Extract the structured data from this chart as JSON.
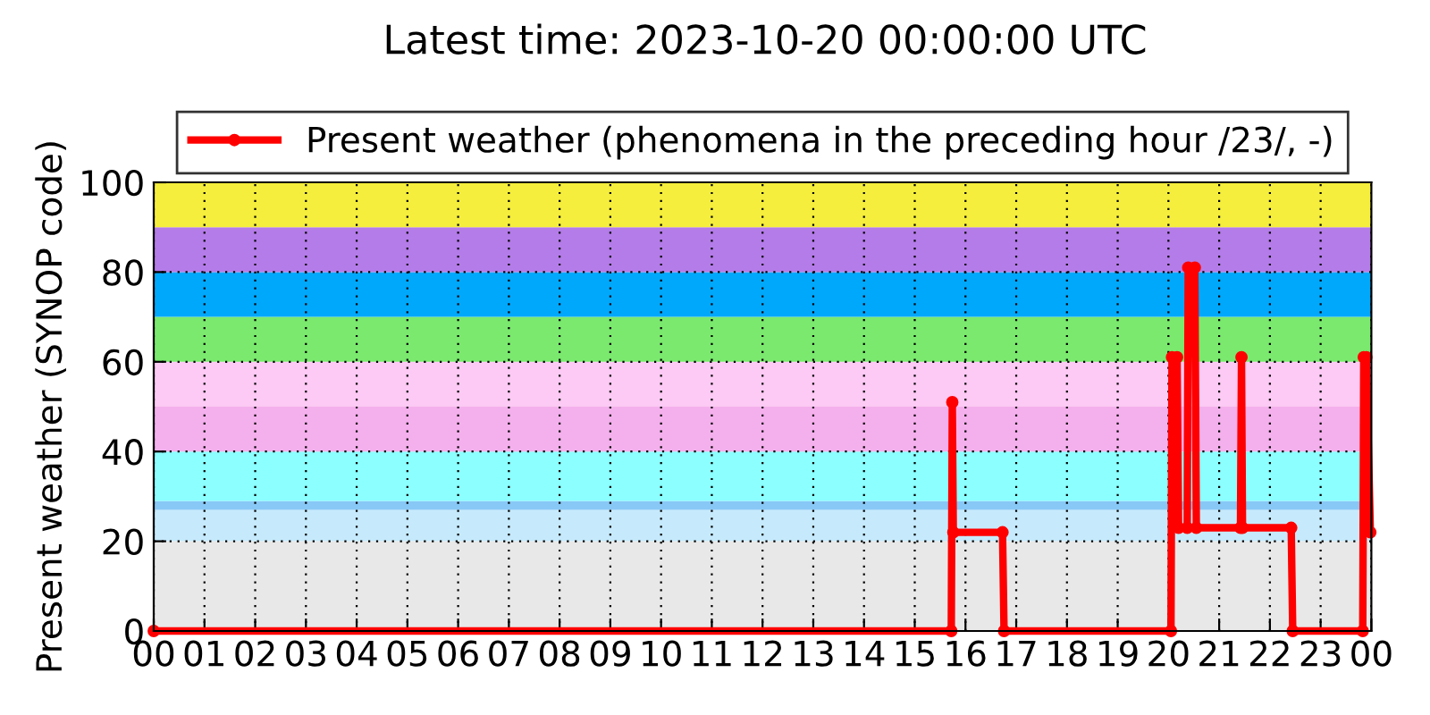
{
  "chart_data": {
    "type": "line",
    "title": "Latest time: 2023-10-20 00:00:00 UTC",
    "ylabel": "Present weather (SYNOP code)",
    "series": [
      {
        "name": "Present weather (phenomena in the preceding hour /23/, -)",
        "color": "#ff0000",
        "x": [
          0,
          15.72,
          15.74,
          15.76,
          16.73,
          16.76,
          20.05,
          20.07,
          20.17,
          20.2,
          20.37,
          20.39,
          20.52,
          20.55,
          21.42,
          21.44,
          21.46,
          22.42,
          22.45,
          23.83,
          23.85,
          23.9,
          23.98
        ],
        "values": [
          0,
          0,
          51,
          22,
          22,
          0,
          0,
          61,
          61,
          23,
          23,
          81,
          81,
          23,
          23,
          61,
          23,
          23,
          0,
          0,
          61,
          61,
          22
        ]
      }
    ],
    "xlim": [
      0,
      24
    ],
    "ylim": [
      0,
      100
    ],
    "xticks": [
      {
        "value": 0,
        "label": "00"
      },
      {
        "value": 1,
        "label": "01"
      },
      {
        "value": 2,
        "label": "02"
      },
      {
        "value": 3,
        "label": "03"
      },
      {
        "value": 4,
        "label": "04"
      },
      {
        "value": 5,
        "label": "05"
      },
      {
        "value": 6,
        "label": "06"
      },
      {
        "value": 7,
        "label": "07"
      },
      {
        "value": 8,
        "label": "08"
      },
      {
        "value": 9,
        "label": "09"
      },
      {
        "value": 10,
        "label": "10"
      },
      {
        "value": 11,
        "label": "11"
      },
      {
        "value": 12,
        "label": "12"
      },
      {
        "value": 13,
        "label": "13"
      },
      {
        "value": 14,
        "label": "14"
      },
      {
        "value": 15,
        "label": "15"
      },
      {
        "value": 16,
        "label": "16"
      },
      {
        "value": 17,
        "label": "17"
      },
      {
        "value": 18,
        "label": "18"
      },
      {
        "value": 19,
        "label": "19"
      },
      {
        "value": 20,
        "label": "20"
      },
      {
        "value": 21,
        "label": "21"
      },
      {
        "value": 22,
        "label": "22"
      },
      {
        "value": 23,
        "label": "23"
      },
      {
        "value": 24,
        "label": "00"
      }
    ],
    "yticks": [
      0,
      20,
      40,
      60,
      80,
      100
    ],
    "bands": [
      {
        "axis": "y",
        "from": 0,
        "to": 20,
        "color": "#e8e8e8"
      },
      {
        "axis": "y",
        "from": 20,
        "to": 27,
        "color": "#c6eafc"
      },
      {
        "axis": "y",
        "from": 27,
        "to": 29,
        "color": "#88c8f6"
      },
      {
        "axis": "y",
        "from": 29,
        "to": 40,
        "color": "#8cffff"
      },
      {
        "axis": "y",
        "from": 40,
        "to": 50,
        "color": "#f4b0ec"
      },
      {
        "axis": "y",
        "from": 50,
        "to": 60,
        "color": "#fccaf4"
      },
      {
        "axis": "y",
        "from": 60,
        "to": 70,
        "color": "#7ae96e"
      },
      {
        "axis": "y",
        "from": 70,
        "to": 80,
        "color": "#00a8fc"
      },
      {
        "axis": "y",
        "from": 80,
        "to": 90,
        "color": "#b47ce8"
      },
      {
        "axis": "y",
        "from": 90,
        "to": 100,
        "color": "#f5ee3c"
      }
    ],
    "grid": true,
    "legend": "top",
    "marker": "circle",
    "line_style": "solid"
  }
}
